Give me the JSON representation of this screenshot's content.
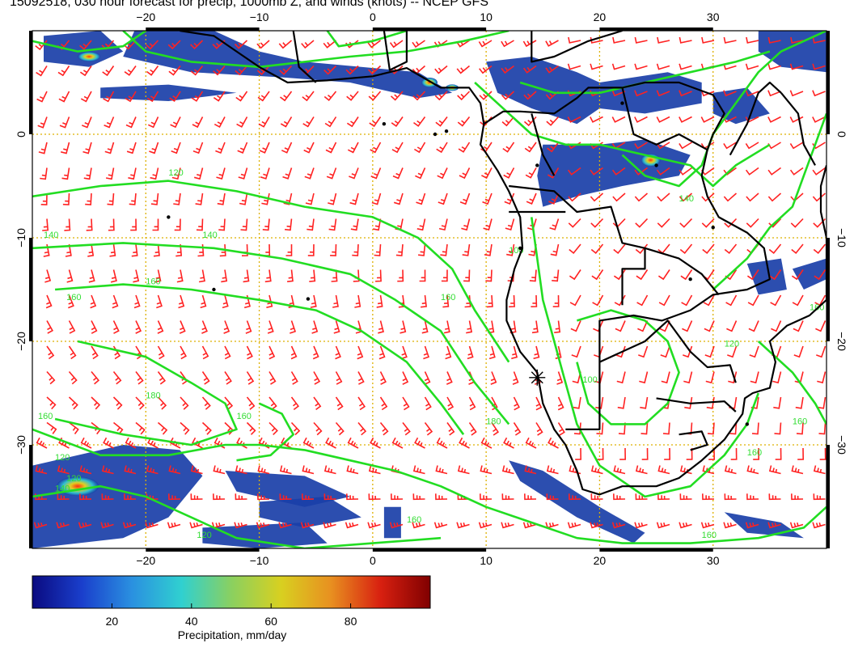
{
  "title": "15092518, 030 hour forecast for precip, 1000mb Z, and winds (knots) -- NCEP GFS",
  "map": {
    "lon_range": [
      -30,
      40
    ],
    "lat_range": [
      -40,
      10
    ],
    "lon_ticks": [
      -20,
      -10,
      0,
      10,
      20,
      30
    ],
    "lon_tick_labels": [
      "−20",
      "−10",
      "0",
      "10",
      "20",
      "30"
    ],
    "lat_ticks": [
      0,
      -10,
      -20,
      -30
    ],
    "lat_tick_labels": [
      "0",
      "−10",
      "−20",
      "−30"
    ],
    "grid": "dotted",
    "colors": {
      "contours": "#22dd22",
      "wind_barbs": "#ff2222",
      "coastline": "#000000",
      "grid": "#ddb000",
      "precip_light": "#1a3fa8"
    },
    "contour_labels": [
      "120",
      "140",
      "140",
      "160",
      "160",
      "180",
      "160",
      "160",
      "120",
      "120",
      "140",
      "100",
      "100",
      "160",
      "180",
      "160",
      "120",
      "160",
      "160",
      "160",
      "120",
      "140",
      "160"
    ],
    "marker": {
      "symbol": "asterisk",
      "lon": 14.5,
      "lat": -23.5
    }
  },
  "colorbar": {
    "min": 0,
    "max": 100,
    "tick_values": [
      20,
      40,
      60,
      80
    ],
    "tick_labels": [
      "20",
      "40",
      "60",
      "80"
    ],
    "title": "Precipitation, mm/day",
    "colors": [
      "#0a0a80",
      "#1a3fcc",
      "#2a90e0",
      "#30d0d0",
      "#8ad060",
      "#d8d020",
      "#e89020",
      "#d82010",
      "#800000"
    ]
  }
}
